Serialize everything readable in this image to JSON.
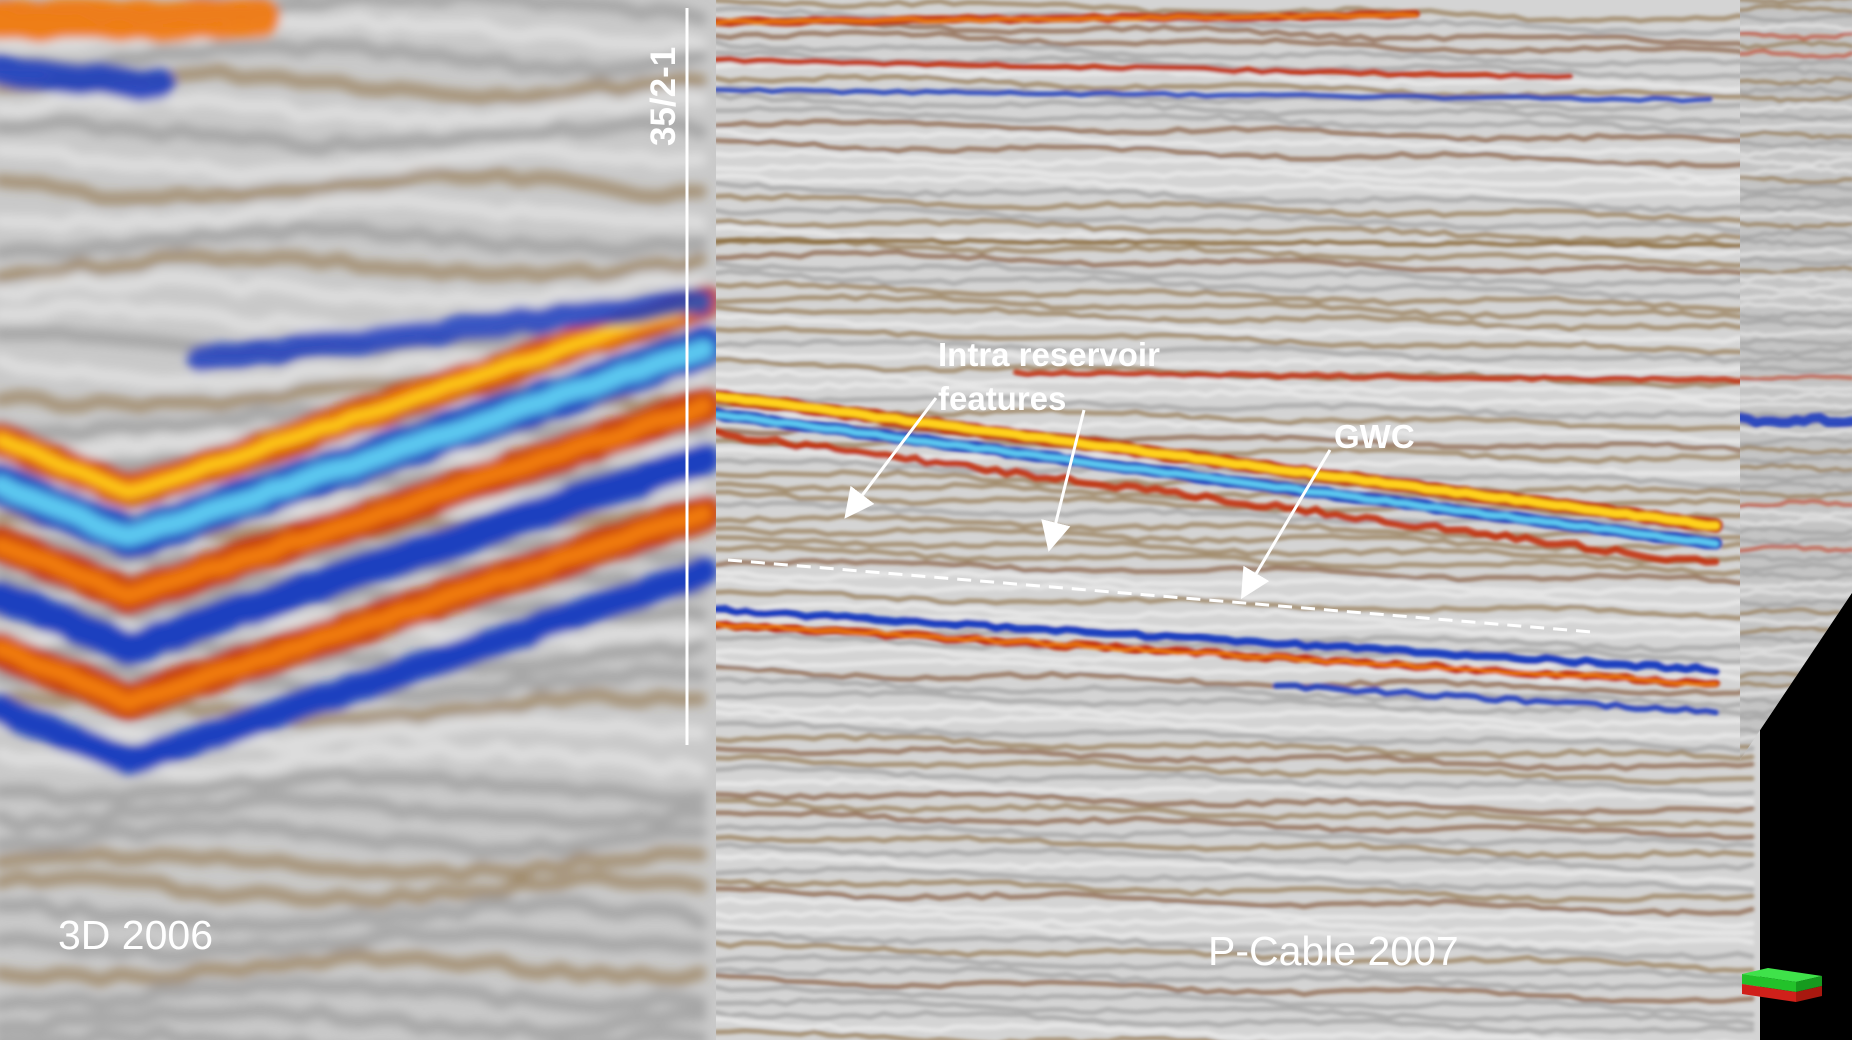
{
  "labels": {
    "survey_left": "3D 2006",
    "survey_right": "P-Cable 2007",
    "well": "35/2-1",
    "feature_line1": "Intra reservoir",
    "feature_line2": "features",
    "contact": "GWC"
  },
  "colors": {
    "background": "#000000",
    "peak_red": "#c2300f",
    "peak_orange": "#f07a10",
    "peak_yellow": "#ffd21a",
    "trough_blue": "#1f3fbf",
    "trough_light_blue": "#5cc8f0",
    "neutral_gray": "#bdbdbd",
    "brown": "#8a6a3a",
    "annotation": "#ffffff",
    "cube_green": "#22c22a",
    "cube_red": "#d0201a"
  },
  "icons": {
    "orientation": "orientation-cube-icon"
  }
}
